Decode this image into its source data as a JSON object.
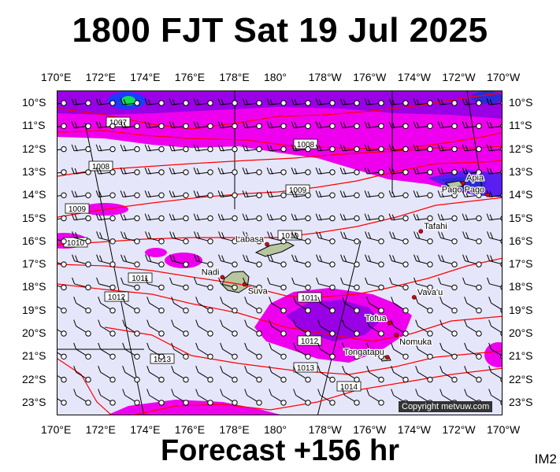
{
  "header": {
    "title": "1800 FJT Sat 19 Jul 2025"
  },
  "footer": {
    "forecast": "Forecast +156 hr",
    "code": "IM2"
  },
  "axes": {
    "lon_labels": [
      "170°E",
      "172°E",
      "174°E",
      "176°E",
      "178°E",
      "180°",
      "178°W",
      "176°W",
      "174°W",
      "172°W",
      "170°W"
    ],
    "lat_labels": [
      "10°S",
      "11°S",
      "12°S",
      "13°S",
      "14°S",
      "15°S",
      "16°S",
      "17°S",
      "18°S",
      "19°S",
      "20°S",
      "21°S",
      "22°S",
      "23°S"
    ]
  },
  "places": [
    {
      "name": "Apia",
      "lon": -171.8,
      "lat": -13.8
    },
    {
      "name": "Pago Pago",
      "lon": -170.7,
      "lat": -14.3
    },
    {
      "name": "Tafahi",
      "lon": -173.7,
      "lat": -15.85
    },
    {
      "name": "Labasa",
      "lon": 179.4,
      "lat": -16.4
    },
    {
      "name": "Nadi",
      "lon": 177.4,
      "lat": -17.8
    },
    {
      "name": "Suva",
      "lon": 178.4,
      "lat": -18.1
    },
    {
      "name": "Vava'u",
      "lon": -174.0,
      "lat": -18.65
    },
    {
      "name": "Tofua",
      "lon": -175.1,
      "lat": -19.75
    },
    {
      "name": "Nomuka",
      "lon": -174.8,
      "lat": -20.25
    },
    {
      "name": "Tongatapu",
      "lon": -175.2,
      "lat": -21.2
    }
  ],
  "isobars": [
    "1007",
    "1008",
    "1008",
    "1009",
    "1009",
    "1010",
    "1010",
    "1011",
    "1011",
    "1012",
    "1012",
    "1013",
    "1013",
    "1014"
  ],
  "copyright": "Copyright metvuw.com",
  "colors": {
    "background": "#e6e6fa",
    "rain_light": "#ee00ee",
    "rain_mid": "#9a00e6",
    "rain_heavy": "#2222ee",
    "isobar": "#ff0000",
    "wind": "#000000"
  }
}
